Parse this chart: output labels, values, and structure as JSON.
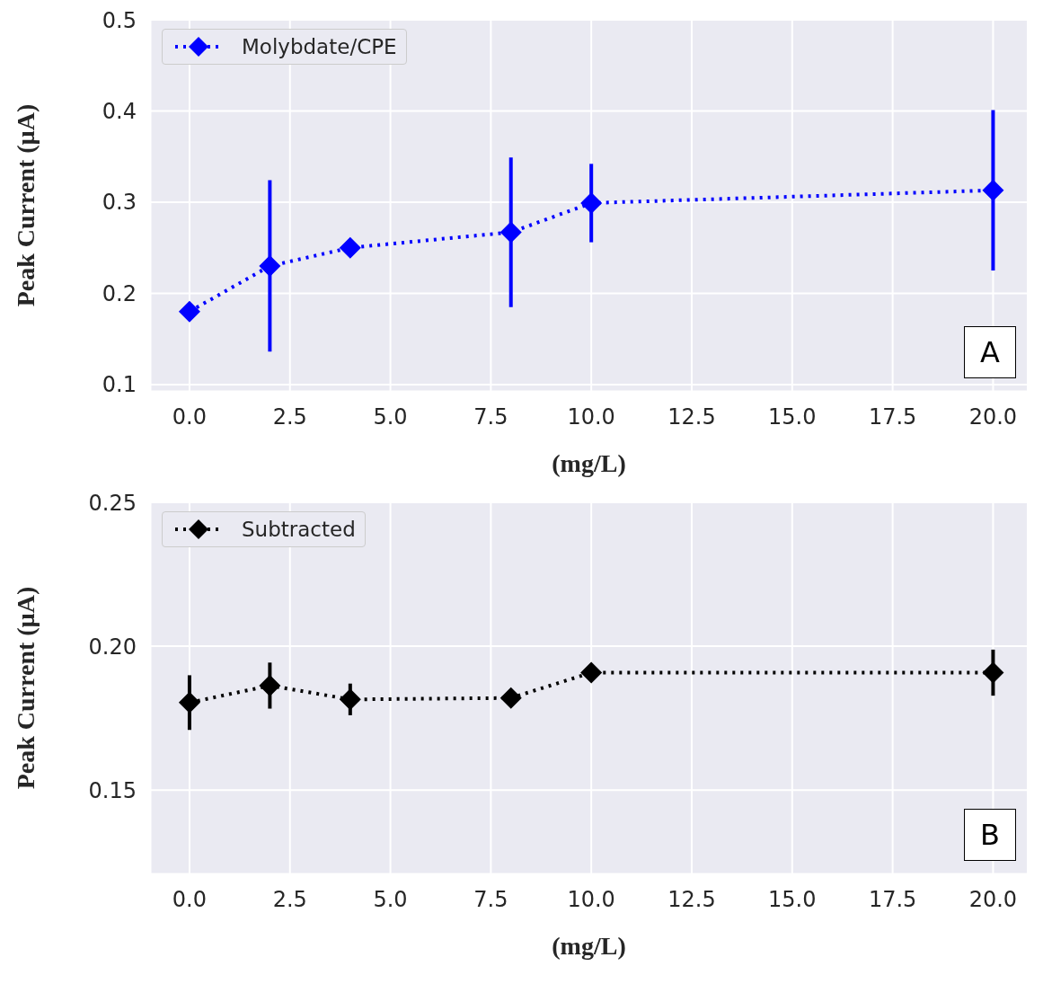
{
  "chart_data": [
    {
      "type": "line",
      "xlabel": "(mg/L)",
      "ylabel": "Peak Current (µA)",
      "annotations": [
        "A"
      ],
      "x": [
        0,
        2,
        4,
        8,
        10,
        20
      ],
      "series": [
        {
          "name": "Molybdate/CPE",
          "color": "#0000ff",
          "values": [
            0.18,
            0.23,
            0.25,
            0.267,
            0.299,
            0.313
          ],
          "errors": [
            null,
            0.094,
            null,
            0.082,
            0.043,
            0.088
          ]
        }
      ],
      "xlim": [
        -0.96,
        20.84
      ],
      "xticks": [
        {
          "value": 0,
          "label": "0.0"
        },
        2.5,
        {
          "value": 5,
          "label": "5.0"
        },
        7.5,
        {
          "value": 10,
          "label": "10.0"
        },
        12.5,
        {
          "value": 15,
          "label": "15.0"
        },
        17.5,
        {
          "value": 20,
          "label": "20.0"
        }
      ],
      "ylim": [
        0.093,
        0.5
      ],
      "yticks": [
        0.1,
        0.2,
        0.3,
        0.4,
        0.5
      ],
      "grid": true,
      "legend": "top left",
      "marker": "diamond",
      "line_style": "dotted"
    },
    {
      "type": "line",
      "xlabel": "(mg/L)",
      "ylabel": "Peak Current (µA)",
      "annotations": [
        "B"
      ],
      "x": [
        0,
        2,
        4,
        8,
        10,
        20
      ],
      "series": [
        {
          "name": "Subtracted",
          "color": "#000000",
          "values": [
            0.1804,
            0.1863,
            0.1815,
            0.182,
            0.1908,
            0.1908
          ],
          "errors": [
            0.0095,
            0.008,
            0.0055,
            null,
            null,
            0.008
          ]
        }
      ],
      "xlim": [
        -0.96,
        20.84
      ],
      "xticks": [
        {
          "value": 0,
          "label": "0.0"
        },
        2.5,
        {
          "value": 5,
          "label": "5.0"
        },
        7.5,
        {
          "value": 10,
          "label": "10.0"
        },
        12.5,
        {
          "value": 15,
          "label": "15.0"
        },
        17.5,
        {
          "value": 20,
          "label": "20.0"
        }
      ],
      "ylim": [
        0.121,
        0.25
      ],
      "yticks": [
        0.15,
        {
          "value": 0.2,
          "label": "0.20"
        },
        0.25
      ],
      "grid": true,
      "legend": "top left",
      "marker": "diamond",
      "line_style": "dotted"
    }
  ]
}
